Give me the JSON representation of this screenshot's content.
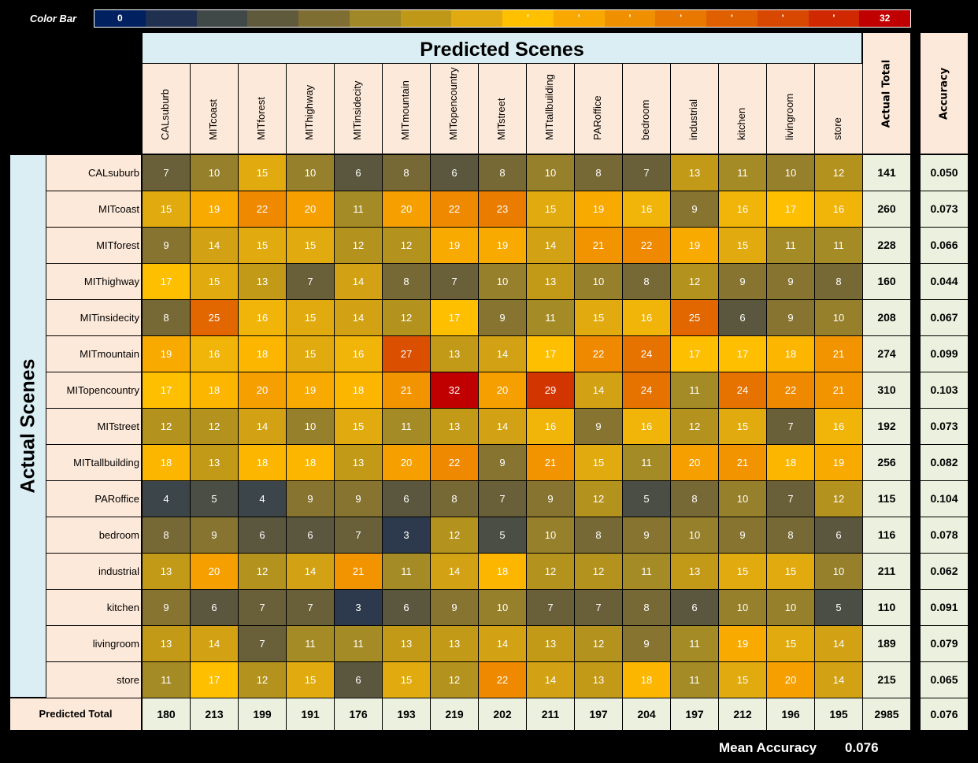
{
  "colorbar": {
    "label": "Color Bar",
    "min": 0,
    "max": 32,
    "ticks": [
      "0",
      "",
      "",
      "",
      "",
      "",
      "",
      "",
      "'",
      "'",
      "'",
      "'",
      "'",
      "'",
      "'",
      "32"
    ],
    "colors": [
      "#002060",
      "#203050",
      "#404848",
      "#605A3C",
      "#7F6E32",
      "#A08828",
      "#C09818",
      "#E0AA10",
      "#FFC000",
      "#F8A800",
      "#F09000",
      "#E87800",
      "#E06000",
      "#D84800",
      "#D02800",
      "#C00000"
    ]
  },
  "chart_data": {
    "type": "heatmap",
    "title": "Predicted Scenes",
    "ylabel": "Actual Scenes",
    "columns": [
      "CALsuburb",
      "MITcoast",
      "MITforest",
      "MIThighway",
      "MITinsidecity",
      "MITmountain",
      "MITopencountry",
      "MITstreet",
      "MITtallbuilding",
      "PARoffice",
      "bedroom",
      "industrial",
      "kitchen",
      "livingroom",
      "store"
    ],
    "rows": [
      "CALsuburb",
      "MITcoast",
      "MITforest",
      "MIThighway",
      "MITinsidecity",
      "MITmountain",
      "MITopencountry",
      "MITstreet",
      "MITtallbuilding",
      "PARoffice",
      "bedroom",
      "industrial",
      "kitchen",
      "livingroom",
      "store"
    ],
    "values": [
      [
        7,
        10,
        15,
        10,
        6,
        8,
        6,
        8,
        10,
        8,
        7,
        13,
        11,
        10,
        12
      ],
      [
        15,
        19,
        22,
        20,
        11,
        20,
        22,
        23,
        15,
        19,
        16,
        9,
        16,
        17,
        16
      ],
      [
        9,
        14,
        15,
        15,
        12,
        12,
        19,
        19,
        14,
        21,
        22,
        19,
        15,
        11,
        11
      ],
      [
        17,
        15,
        13,
        7,
        14,
        8,
        7,
        10,
        13,
        10,
        8,
        12,
        9,
        9,
        8
      ],
      [
        8,
        25,
        16,
        15,
        14,
        12,
        17,
        9,
        11,
        15,
        16,
        25,
        6,
        9,
        10
      ],
      [
        19,
        16,
        18,
        15,
        16,
        27,
        13,
        14,
        17,
        22,
        24,
        17,
        17,
        18,
        21
      ],
      [
        17,
        18,
        20,
        19,
        18,
        21,
        32,
        20,
        29,
        14,
        24,
        11,
        24,
        22,
        21
      ],
      [
        12,
        12,
        14,
        10,
        15,
        11,
        13,
        14,
        16,
        9,
        16,
        12,
        15,
        7,
        16
      ],
      [
        18,
        13,
        18,
        18,
        13,
        20,
        22,
        9,
        21,
        15,
        11,
        20,
        21,
        18,
        19
      ],
      [
        4,
        5,
        4,
        9,
        9,
        6,
        8,
        7,
        9,
        12,
        5,
        8,
        10,
        7,
        12
      ],
      [
        8,
        9,
        6,
        6,
        7,
        3,
        12,
        5,
        10,
        8,
        9,
        10,
        9,
        8,
        6
      ],
      [
        13,
        20,
        12,
        14,
        21,
        11,
        14,
        18,
        12,
        12,
        11,
        13,
        15,
        15,
        10
      ],
      [
        9,
        6,
        7,
        7,
        3,
        6,
        9,
        10,
        7,
        7,
        8,
        6,
        10,
        10,
        5
      ],
      [
        13,
        14,
        7,
        11,
        11,
        13,
        13,
        14,
        13,
        12,
        9,
        11,
        19,
        15,
        14
      ],
      [
        11,
        17,
        12,
        15,
        6,
        15,
        12,
        22,
        14,
        13,
        18,
        11,
        15,
        20,
        14
      ]
    ],
    "actual_total_label": "Actual Total",
    "actual_totals": [
      141,
      260,
      228,
      160,
      208,
      274,
      310,
      192,
      256,
      115,
      116,
      211,
      110,
      189,
      215
    ],
    "accuracy_label": "Accuracy",
    "accuracy": [
      "0.050",
      "0.073",
      "0.066",
      "0.044",
      "0.067",
      "0.099",
      "0.103",
      "0.073",
      "0.082",
      "0.104",
      "0.078",
      "0.062",
      "0.091",
      "0.079",
      "0.065"
    ],
    "predicted_total_label": "Predicted Total",
    "predicted_totals": [
      180,
      213,
      199,
      191,
      176,
      193,
      219,
      202,
      211,
      197,
      204,
      197,
      212,
      196,
      195
    ],
    "grand_total": 2985,
    "overall_accuracy": "0.076",
    "mean_accuracy_label": "Mean Accuracy",
    "mean_accuracy": "0.076",
    "zlim": [
      0,
      32
    ]
  }
}
